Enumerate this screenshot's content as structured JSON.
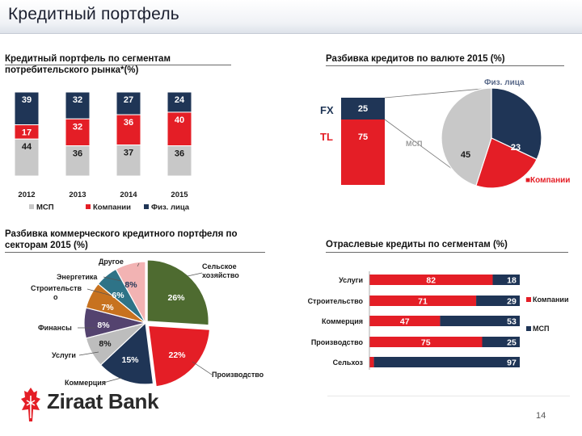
{
  "title": "Кредитный портфель",
  "page_number": "14",
  "brand": {
    "logo_text": "Ziraat Bank",
    "primary": "#e41e26",
    "dark": "#1f3556",
    "gray": "#c8c8c8"
  },
  "chart_data": [
    {
      "id": "segments",
      "type": "bar",
      "stacked": true,
      "title": "Кредитный портфель по сегментам потребительского рынка*(%)",
      "title_lines": [
        "Кредитный портфель по сегментам",
        "потребительского рынка*(%)"
      ],
      "categories": [
        "2012",
        "2013",
        "2014",
        "2015"
      ],
      "series": [
        {
          "name": "МСП",
          "color": "#c8c8c8",
          "values": [
            44,
            36,
            37,
            36
          ]
        },
        {
          "name": "Компании",
          "color": "#e41e26",
          "values": [
            17,
            32,
            36,
            40
          ]
        },
        {
          "name": "Физ. лица",
          "color": "#1f3556",
          "values": [
            39,
            32,
            27,
            24
          ]
        }
      ],
      "legend": [
        "МСП",
        "Компании",
        "Физ. лица"
      ],
      "ylim": [
        0,
        100
      ]
    },
    {
      "id": "currency",
      "type": "bar",
      "stacked": true,
      "title": "Разбивка кредитов по валюте  2015 (%)",
      "categories": [
        "2015"
      ],
      "series": [
        {
          "name": "TL",
          "color": "#e41e26",
          "value": 75
        },
        {
          "name": "FX",
          "color": "#1f3556",
          "value": 25
        }
      ],
      "axis_labels": [
        "FX",
        "TL"
      ]
    },
    {
      "id": "currency_fx_pie",
      "type": "pie",
      "slices": [
        {
          "label": "Физ. лица",
          "value": 32,
          "color": "#1f3556"
        },
        {
          "label": "Компании",
          "value": 23,
          "color": "#e41e26"
        },
        {
          "label": "МСП",
          "value": 45,
          "color": "#c8c8c8"
        }
      ]
    },
    {
      "id": "sectors",
      "type": "pie",
      "title": "Разбивка коммерческого кредитного портфеля по секторам 2015 (%)",
      "title_lines": [
        "Разбивка коммерческого кредитного портфеля по",
        "секторам 2015 (%)"
      ],
      "slices": [
        {
          "label": "Сельское хозяйство",
          "label_lines": [
            "Сельское",
            "хозяйство"
          ],
          "value": 26,
          "display": "26%",
          "color": "#4e6b30"
        },
        {
          "label": "Производство",
          "value": 22,
          "display": "22%",
          "color": "#e41e26"
        },
        {
          "label": "Коммерция",
          "value": 15,
          "display": "15%",
          "color": "#1f3556"
        },
        {
          "label": "Услуги",
          "value": 8,
          "display": "8%",
          "color": "#bdbdbd"
        },
        {
          "label": "Финансы",
          "value": 8,
          "display": "8%",
          "color": "#54436f"
        },
        {
          "label": "Строительство",
          "label_lines": [
            "Строительств",
            "о"
          ],
          "value": 7,
          "display": "7%",
          "color": "#c7721f"
        },
        {
          "label": "Энергетика",
          "value": 6,
          "display": "6%",
          "color": "#2e7387"
        },
        {
          "label": "Другое",
          "value": 8,
          "display": "8%",
          "color": "#f2b3b3"
        }
      ]
    },
    {
      "id": "industry",
      "type": "bar",
      "orientation": "horizontal",
      "stacked": true,
      "title": "Отраслевые кредиты по сегментам (%)",
      "categories": [
        "Услуги",
        "Строительство",
        "Коммерция",
        "Производство",
        "Сельхоз"
      ],
      "series": [
        {
          "name": "Компании",
          "color": "#e41e26",
          "values": [
            82,
            71,
            47,
            75,
            3
          ]
        },
        {
          "name": "МСП",
          "color": "#1f3556",
          "values": [
            18,
            29,
            53,
            25,
            97
          ]
        }
      ],
      "legend": [
        "Компании",
        "МСП"
      ],
      "xlim": [
        0,
        100
      ]
    }
  ]
}
